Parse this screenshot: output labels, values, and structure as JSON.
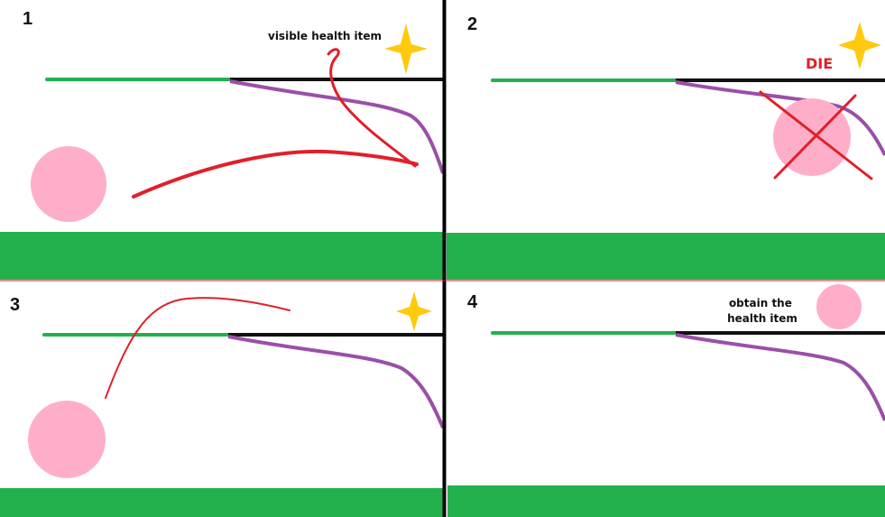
{
  "colors": {
    "ground": "#22b14c",
    "platform": "#22b14c",
    "ledge": "#111111",
    "slope": "#9b4fa8",
    "ball": "#ffaec9",
    "arrow": "#e0202a",
    "star": "#ffc90e",
    "divider": "#000000",
    "panel_bg": "#ffffff"
  },
  "panels": [
    {
      "number": "1",
      "annotation": "visible health item"
    },
    {
      "number": "2",
      "annotation": "DIE"
    },
    {
      "number": "3"
    },
    {
      "number": "4",
      "annotation_lines": [
        "obtain the",
        "health item"
      ]
    }
  ]
}
